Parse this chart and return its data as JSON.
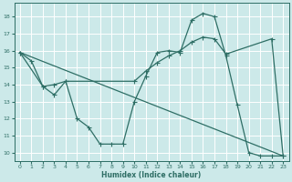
{
  "xlabel": "Humidex (Indice chaleur)",
  "bg_color": "#cce9e9",
  "grid_color": "#ffffff",
  "line_color": "#2e6e65",
  "xlim": [
    -0.5,
    23.5
  ],
  "ylim": [
    9.5,
    18.8
  ],
  "yticks": [
    10,
    11,
    12,
    13,
    14,
    15,
    16,
    17,
    18
  ],
  "xticks": [
    0,
    1,
    2,
    3,
    4,
    5,
    6,
    7,
    8,
    9,
    10,
    11,
    12,
    13,
    14,
    15,
    16,
    17,
    18,
    19,
    20,
    21,
    22,
    23
  ],
  "line1_x": [
    0,
    2,
    3,
    4,
    5,
    6,
    7,
    8,
    9,
    10,
    11,
    12,
    13,
    14,
    15,
    16,
    17,
    18,
    19,
    20,
    21,
    22,
    23
  ],
  "line1_y": [
    15.9,
    13.9,
    13.4,
    14.2,
    12.0,
    11.5,
    10.5,
    10.5,
    10.5,
    13.0,
    14.5,
    15.9,
    16.0,
    15.9,
    17.8,
    18.2,
    18.0,
    15.7,
    12.8,
    10.0,
    9.8,
    9.8,
    9.8
  ],
  "line2_x": [
    0,
    1,
    2,
    3,
    4,
    10,
    11,
    12,
    13,
    14,
    15,
    16,
    17,
    18,
    22,
    23
  ],
  "line2_y": [
    15.9,
    15.4,
    13.9,
    14.0,
    14.2,
    14.2,
    14.8,
    15.3,
    15.7,
    16.0,
    16.5,
    16.8,
    16.7,
    15.8,
    16.7,
    9.8
  ],
  "line3_x": [
    0,
    23
  ],
  "line3_y": [
    15.9,
    9.8
  ]
}
